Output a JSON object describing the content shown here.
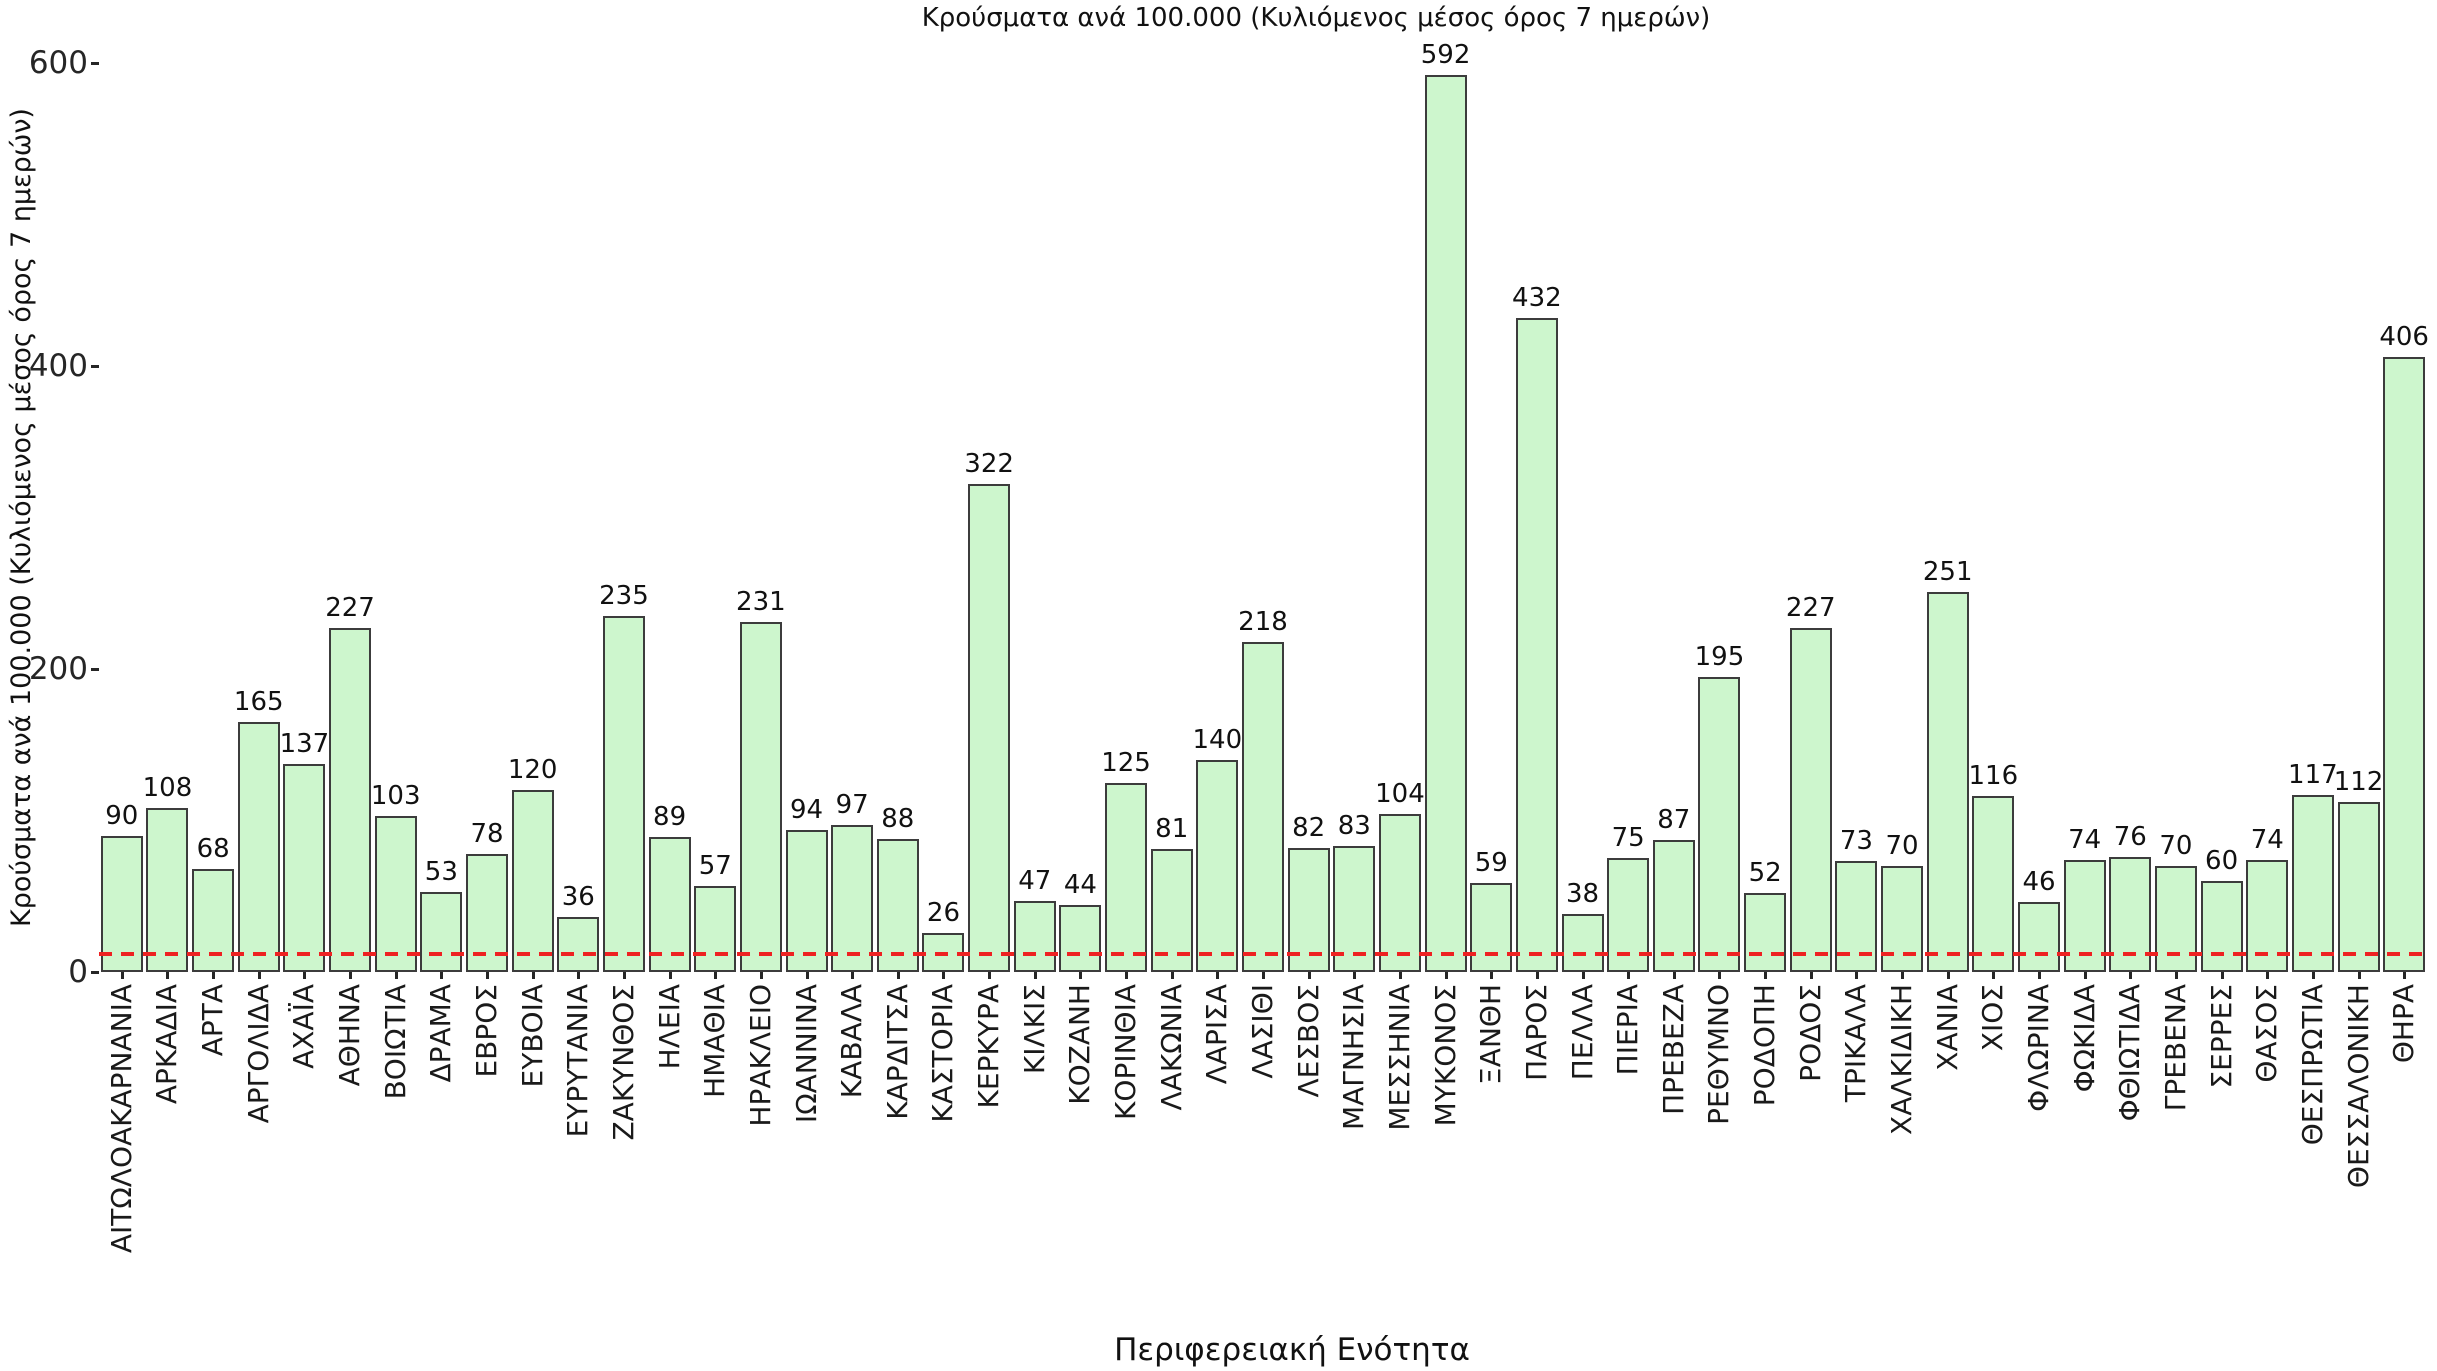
{
  "chart_data": {
    "type": "bar",
    "title": "Κρούσματα ανά 100.000 (Κυλιόμενος μέσος όρος 7 ημερών)",
    "xlabel": "Περιφερειακή Ενότητα",
    "ylabel": "Κρούσματα ανά 100.000 (Κυλιόμενος μέσος όρος 7 ημερών)",
    "categories": [
      "ΑΙΤΩΛΟΑΚΑΡΝΑΝΙΑ",
      "ΑΡΚΑΔΙΑ",
      "ΑΡΤΑ",
      "ΑΡΓΟΛΙΔΑ",
      "ΑΧΑΪΑ",
      "ΑΘΗΝΑ",
      "ΒΟΙΩΤΙΑ",
      "ΔΡΑΜΑ",
      "ΕΒΡΟΣ",
      "ΕΥΒΟΙΑ",
      "ΕΥΡΥΤΑΝΙΑ",
      "ΖΑΚΥΝΘΟΣ",
      "ΗΛΕΙΑ",
      "ΗΜΑΘΙΑ",
      "ΗΡΑΚΛΕΙΟ",
      "ΙΩΑΝΝΙΝΑ",
      "ΚΑΒΑΛΑ",
      "ΚΑΡΔΙΤΣΑ",
      "ΚΑΣΤΟΡΙΑ",
      "ΚΕΡΚΥΡΑ",
      "ΚΙΛΚΙΣ",
      "ΚΟΖΑΝΗ",
      "ΚΟΡΙΝΘΙΑ",
      "ΛΑΚΩΝΙΑ",
      "ΛΑΡΙΣΑ",
      "ΛΑΣΙΘΙ",
      "ΛΕΣΒΟΣ",
      "ΜΑΓΝΗΣΙΑ",
      "ΜΕΣΣΗΝΙΑ",
      "ΜΥΚΟΝΟΣ",
      "ΞΑΝΘΗ",
      "ΠΑΡΟΣ",
      "ΠΕΛΛΑ",
      "ΠΙΕΡΙΑ",
      "ΠΡΕΒΕΖΑ",
      "ΡΕΘΥΜΝΟ",
      "ΡΟΔΟΠΗ",
      "ΡΟΔΟΣ",
      "ΤΡΙΚΑΛΑ",
      "ΧΑΛΚΙΔΙΚΗ",
      "ΧΑΝΙΑ",
      "ΧΙΟΣ",
      "ΦΛΩΡΙΝΑ",
      "ΦΩΚΙΔΑ",
      "ΦΘΙΩΤΙΔΑ",
      "ΓΡΕΒΕΝΑ",
      "ΣΕΡΡΕΣ",
      "ΘΑΣΟΣ",
      "ΘΕΣΠΡΩΤΙΑ",
      "ΘΕΣΣΑΛΟΝΙΚΗ",
      "ΘΗΡΑ"
    ],
    "values": [
      90,
      108,
      68,
      165,
      137,
      227,
      103,
      53,
      78,
      120,
      36,
      235,
      89,
      57,
      231,
      94,
      97,
      88,
      26,
      322,
      47,
      44,
      125,
      81,
      140,
      218,
      82,
      83,
      104,
      592,
      59,
      432,
      38,
      75,
      87,
      195,
      52,
      227,
      73,
      70,
      251,
      116,
      46,
      74,
      76,
      70,
      60,
      74,
      117,
      112,
      406
    ],
    "yticks": [
      0,
      200,
      400,
      600
    ],
    "ylim": [
      0,
      615
    ],
    "grid": false,
    "legend": null,
    "bar_fill_color": "#cdf6cd",
    "bar_edge_color": "#3c3c3c",
    "value_label_color": "#111111",
    "threshold_line": {
      "value": 12,
      "color": "#ee2222",
      "style": "dashed"
    }
  }
}
